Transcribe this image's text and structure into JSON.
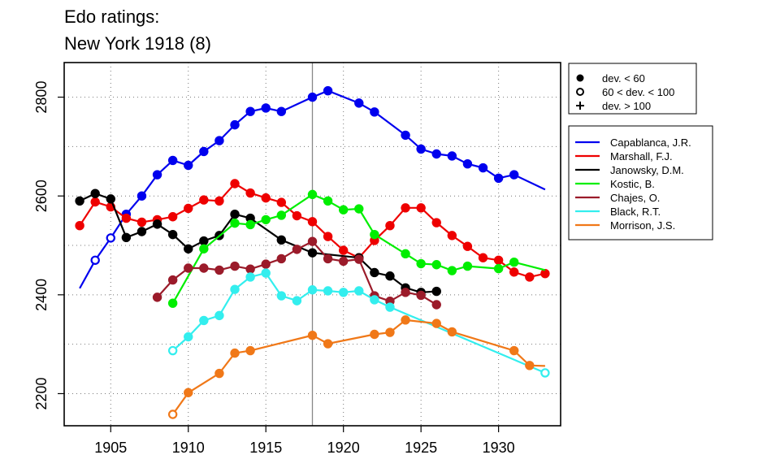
{
  "chart_data": {
    "type": "line",
    "title_lines": [
      "Edo ratings:",
      "New York 1918 (8)"
    ],
    "xlim": [
      1902,
      1934
    ],
    "ylim": [
      2135,
      2870
    ],
    "x_ticks": [
      1905,
      1910,
      1915,
      1920,
      1925,
      1930
    ],
    "y_ticks": [
      2200,
      2400,
      2600,
      2800
    ],
    "grid": true,
    "event_year": 1918,
    "symbol_legend": {
      "placement": "top-right",
      "items": [
        {
          "marker": "filled-circle",
          "label": "dev. < 60"
        },
        {
          "marker": "open-circle",
          "label": "60 < dev. < 100"
        },
        {
          "marker": "plus",
          "label": "dev. > 100"
        }
      ]
    },
    "series_legend_placement": "right",
    "series": [
      {
        "name": "Capablanca, J.R.",
        "color": "#0000ee",
        "points": [
          [
            1903,
            2413,
            "none"
          ],
          [
            1904,
            2470,
            "open"
          ],
          [
            1905,
            2515,
            "open"
          ],
          [
            1906,
            2563,
            "filled"
          ],
          [
            1907,
            2600,
            "filled"
          ],
          [
            1908,
            2643,
            "filled"
          ],
          [
            1909,
            2672,
            "filled"
          ],
          [
            1910,
            2662,
            "filled"
          ],
          [
            1911,
            2690,
            "filled"
          ],
          [
            1912,
            2712,
            "filled"
          ],
          [
            1913,
            2744,
            "filled"
          ],
          [
            1914,
            2771,
            "filled"
          ],
          [
            1915,
            2778,
            "filled"
          ],
          [
            1916,
            2771,
            "filled"
          ],
          [
            1918,
            2800,
            "filled"
          ],
          [
            1919,
            2813,
            "filled"
          ],
          [
            1921,
            2788,
            "filled"
          ],
          [
            1922,
            2770,
            "filled"
          ],
          [
            1924,
            2723,
            "filled"
          ],
          [
            1925,
            2695,
            "filled"
          ],
          [
            1926,
            2685,
            "filled"
          ],
          [
            1927,
            2681,
            "filled"
          ],
          [
            1928,
            2665,
            "filled"
          ],
          [
            1929,
            2657,
            "filled"
          ],
          [
            1930,
            2636,
            "filled"
          ],
          [
            1931,
            2643,
            "filled"
          ],
          [
            1933,
            2613,
            "none"
          ]
        ]
      },
      {
        "name": "Marshall, F.J.",
        "color": "#ee0000",
        "points": [
          [
            1903,
            2540,
            "filled"
          ],
          [
            1904,
            2588,
            "filled"
          ],
          [
            1905,
            2578,
            "filled"
          ],
          [
            1906,
            2555,
            "filled"
          ],
          [
            1907,
            2547,
            "filled"
          ],
          [
            1908,
            2552,
            "filled"
          ],
          [
            1909,
            2558,
            "filled"
          ],
          [
            1910,
            2575,
            "filled"
          ],
          [
            1911,
            2592,
            "filled"
          ],
          [
            1912,
            2590,
            "filled"
          ],
          [
            1913,
            2625,
            "filled"
          ],
          [
            1914,
            2606,
            "filled"
          ],
          [
            1915,
            2596,
            "filled"
          ],
          [
            1916,
            2587,
            "filled"
          ],
          [
            1917,
            2560,
            "filled"
          ],
          [
            1918,
            2548,
            "filled"
          ],
          [
            1919,
            2518,
            "filled"
          ],
          [
            1920,
            2490,
            "filled"
          ],
          [
            1921,
            2475,
            "filled"
          ],
          [
            1922,
            2510,
            "filled"
          ],
          [
            1923,
            2540,
            "filled"
          ],
          [
            1924,
            2576,
            "filled"
          ],
          [
            1925,
            2576,
            "filled"
          ],
          [
            1926,
            2546,
            "filled"
          ],
          [
            1927,
            2520,
            "filled"
          ],
          [
            1928,
            2498,
            "filled"
          ],
          [
            1929,
            2475,
            "filled"
          ],
          [
            1930,
            2470,
            "filled"
          ],
          [
            1931,
            2446,
            "filled"
          ],
          [
            1932,
            2436,
            "filled"
          ],
          [
            1933,
            2443,
            "filled"
          ]
        ]
      },
      {
        "name": "Janowsky, D.M.",
        "color": "#000000",
        "points": [
          [
            1903,
            2590,
            "filled"
          ],
          [
            1904,
            2605,
            "filled"
          ],
          [
            1905,
            2594,
            "filled"
          ],
          [
            1906,
            2516,
            "filled"
          ],
          [
            1907,
            2528,
            "filled"
          ],
          [
            1908,
            2543,
            "filled"
          ],
          [
            1909,
            2522,
            "filled"
          ],
          [
            1910,
            2493,
            "filled"
          ],
          [
            1911,
            2509,
            "filled"
          ],
          [
            1912,
            2520,
            "filled"
          ],
          [
            1913,
            2563,
            "filled"
          ],
          [
            1914,
            2555,
            "filled"
          ],
          [
            1916,
            2511,
            "filled"
          ],
          [
            1918,
            2485,
            "filled"
          ],
          [
            1921,
            2475,
            "filled"
          ],
          [
            1922,
            2445,
            "filled"
          ],
          [
            1923,
            2438,
            "filled"
          ],
          [
            1924,
            2414,
            "filled"
          ],
          [
            1925,
            2405,
            "filled"
          ],
          [
            1926,
            2407,
            "filled"
          ]
        ]
      },
      {
        "name": "Kostic, B.",
        "color": "#00ee00",
        "points": [
          [
            1909,
            2383,
            "filled"
          ],
          [
            1911,
            2493,
            "filled"
          ],
          [
            1913,
            2545,
            "filled"
          ],
          [
            1914,
            2542,
            "filled"
          ],
          [
            1915,
            2552,
            "filled"
          ],
          [
            1916,
            2561,
            "filled"
          ],
          [
            1918,
            2603,
            "filled"
          ],
          [
            1919,
            2590,
            "filled"
          ],
          [
            1920,
            2572,
            "filled"
          ],
          [
            1921,
            2574,
            "filled"
          ],
          [
            1922,
            2522,
            "filled"
          ],
          [
            1924,
            2483,
            "filled"
          ],
          [
            1925,
            2463,
            "filled"
          ],
          [
            1926,
            2461,
            "filled"
          ],
          [
            1927,
            2449,
            "filled"
          ],
          [
            1928,
            2458,
            "filled"
          ],
          [
            1930,
            2453,
            "filled"
          ],
          [
            1931,
            2466,
            "filled"
          ],
          [
            1933,
            2450,
            "none"
          ]
        ]
      },
      {
        "name": "Chajes, O.",
        "color": "#9b1b2a",
        "points": [
          [
            1908,
            2395,
            "filled"
          ],
          [
            1909,
            2430,
            "filled"
          ],
          [
            1910,
            2454,
            "filled"
          ],
          [
            1911,
            2454,
            "filled"
          ],
          [
            1912,
            2450,
            "filled"
          ],
          [
            1913,
            2458,
            "filled"
          ],
          [
            1914,
            2452,
            "filled"
          ],
          [
            1915,
            2462,
            "filled"
          ],
          [
            1916,
            2473,
            "filled"
          ],
          [
            1917,
            2492,
            "filled"
          ],
          [
            1918,
            2508,
            "filled"
          ],
          [
            1919,
            2473,
            "filled"
          ],
          [
            1920,
            2468,
            "filled"
          ],
          [
            1921,
            2472,
            "filled"
          ],
          [
            1922,
            2398,
            "filled"
          ],
          [
            1923,
            2387,
            "filled"
          ],
          [
            1924,
            2405,
            "filled"
          ],
          [
            1925,
            2399,
            "filled"
          ],
          [
            1926,
            2380,
            "filled"
          ]
        ]
      },
      {
        "name": "Black, R.T.",
        "color": "#33eeee",
        "points": [
          [
            1909,
            2287,
            "open"
          ],
          [
            1910,
            2315,
            "filled"
          ],
          [
            1911,
            2348,
            "filled"
          ],
          [
            1912,
            2358,
            "filled"
          ],
          [
            1913,
            2411,
            "filled"
          ],
          [
            1914,
            2436,
            "filled"
          ],
          [
            1915,
            2444,
            "filled"
          ],
          [
            1916,
            2398,
            "filled"
          ],
          [
            1917,
            2388,
            "filled"
          ],
          [
            1918,
            2410,
            "filled"
          ],
          [
            1919,
            2408,
            "filled"
          ],
          [
            1920,
            2405,
            "filled"
          ],
          [
            1921,
            2408,
            "filled"
          ],
          [
            1922,
            2390,
            "filled"
          ],
          [
            1923,
            2375,
            "filled"
          ],
          [
            1933,
            2242,
            "open"
          ]
        ]
      },
      {
        "name": "Morrison, J.S.",
        "color": "#f07818",
        "points": [
          [
            1909,
            2158,
            "open"
          ],
          [
            1910,
            2202,
            "filled"
          ],
          [
            1912,
            2241,
            "filled"
          ],
          [
            1913,
            2282,
            "filled"
          ],
          [
            1914,
            2287,
            "filled"
          ],
          [
            1918,
            2318,
            "filled"
          ],
          [
            1919,
            2301,
            "filled"
          ],
          [
            1922,
            2320,
            "filled"
          ],
          [
            1923,
            2324,
            "filled"
          ],
          [
            1924,
            2349,
            "filled"
          ],
          [
            1926,
            2342,
            "filled"
          ],
          [
            1927,
            2325,
            "filled"
          ],
          [
            1931,
            2287,
            "filled"
          ],
          [
            1932,
            2257,
            "filled"
          ],
          [
            1933,
            2256,
            "none"
          ]
        ]
      }
    ]
  }
}
